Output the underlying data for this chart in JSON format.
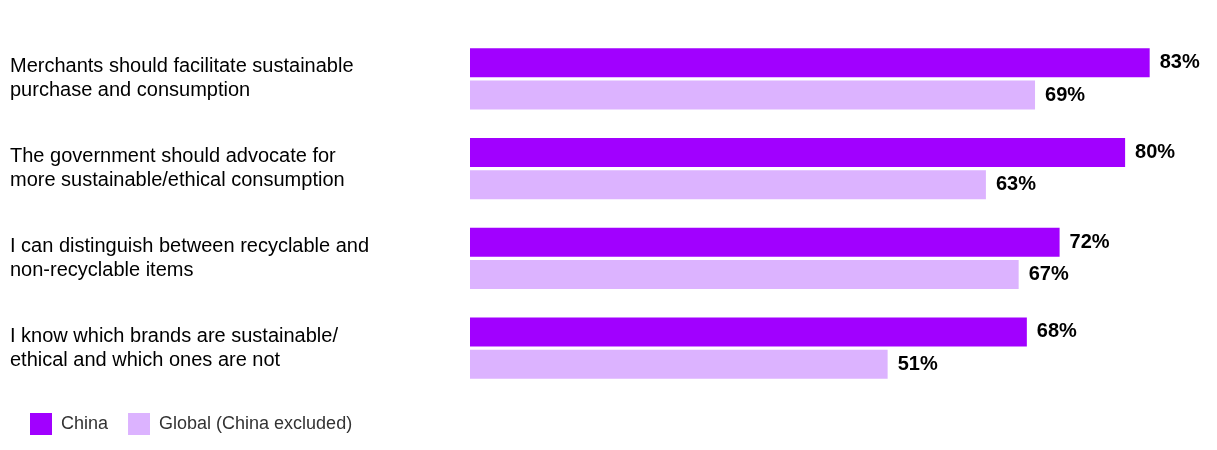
{
  "chart_data": {
    "type": "bar",
    "orientation": "horizontal",
    "categories": [
      "Merchants should facilitate sustainable purchase and consumption",
      "The government should advocate for more sustainable/ethical consumption",
      "I can distinguish between recyclable and non-recyclable items",
      "I know which brands are sustainable/ ethical and which ones are not"
    ],
    "series": [
      {
        "name": "China",
        "color": "#a100ff",
        "values": [
          83,
          80,
          72,
          68
        ],
        "value_labels": [
          "83%",
          "80%",
          "72%",
          "68%"
        ]
      },
      {
        "name": "Global (China excluded)",
        "color": "#dcb3ff",
        "values": [
          69,
          63,
          67,
          51
        ],
        "value_labels": [
          "69%",
          "63%",
          "67%",
          "51%"
        ]
      }
    ],
    "legend": "bottom left",
    "grid": false
  }
}
